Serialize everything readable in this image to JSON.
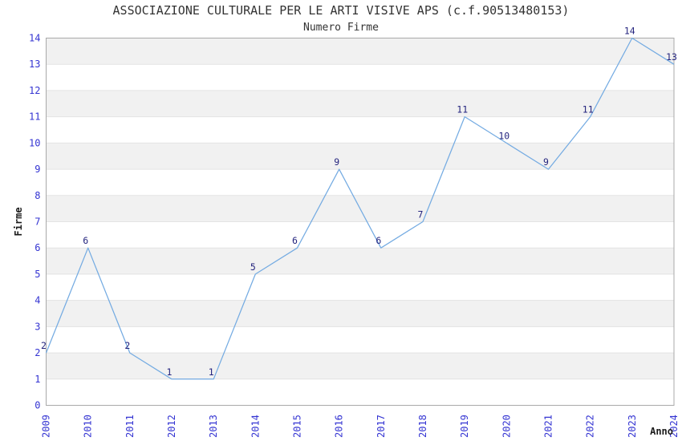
{
  "chart_data": {
    "type": "line",
    "title": "ASSOCIAZIONE CULTURALE PER LE ARTI VISIVE APS (c.f.90513480153)",
    "subtitle": "Numero Firme",
    "xlabel": "Anno",
    "ylabel": "Firme",
    "x": [
      2009,
      2010,
      2011,
      2012,
      2013,
      2014,
      2015,
      2016,
      2017,
      2018,
      2019,
      2020,
      2021,
      2022,
      2023,
      2024
    ],
    "values": [
      2,
      6,
      2,
      1,
      1,
      5,
      6,
      9,
      6,
      7,
      11,
      10,
      9,
      11,
      14,
      13
    ],
    "ylim": [
      0,
      14
    ],
    "ytick_step": 1,
    "grid": "alternating-horizontal-bands",
    "legend": "none",
    "point_labels_visible": true,
    "colors": {
      "line": "#74abe2",
      "tick_label": "#3434d2",
      "point_label": "#24247e",
      "band": "#f1f1f1",
      "gridline": "#e3e3e3",
      "plot_border": "#a9a9a9",
      "title_text": "#333333",
      "axis_label_text": "#1a1a1a",
      "background": "#ffffff"
    }
  }
}
